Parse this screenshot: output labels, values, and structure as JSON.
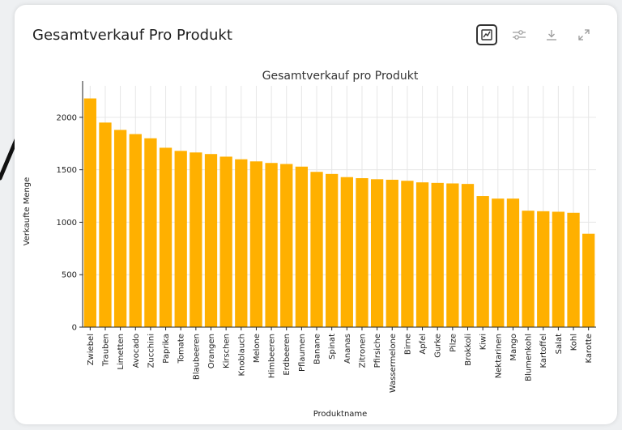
{
  "card": {
    "title": "Gesamtverkauf Pro Produkt"
  },
  "toolbar": {
    "icons": [
      "chart-view-icon",
      "filter-sliders-icon",
      "download-icon",
      "expand-icon"
    ]
  },
  "colors": {
    "bar": "#FFB000",
    "grid": "#e6e6e6",
    "axis": "#222222"
  },
  "chart_data": {
    "type": "bar",
    "title": "Gesamtverkauf pro Produkt",
    "xlabel": "Produktname",
    "ylabel": "Verkaufte Menge",
    "ylim": [
      0,
      2300
    ],
    "yticks": [
      0,
      500,
      1000,
      1500,
      2000
    ],
    "grid": true,
    "categories": [
      "Zwiebel",
      "Trauben",
      "Limetten",
      "Avocado",
      "Zucchini",
      "Paprika",
      "Tomate",
      "Blaubeeren",
      "Orangen",
      "Kirschen",
      "Knoblauch",
      "Melone",
      "Himbeeren",
      "Erdbeeren",
      "Pflaumen",
      "Banane",
      "Spinat",
      "Ananas",
      "Zitronen",
      "Pfirsiche",
      "Wassermelone",
      "Birne",
      "Apfel",
      "Gurke",
      "Pilze",
      "Brokkoli",
      "Kiwi",
      "Nektarinen",
      "Mango",
      "Blumenkohl",
      "Kartoffel",
      "Salat",
      "Kohl",
      "Karotte"
    ],
    "values": [
      2180,
      1950,
      1880,
      1840,
      1800,
      1710,
      1680,
      1665,
      1650,
      1625,
      1600,
      1580,
      1565,
      1555,
      1530,
      1480,
      1460,
      1430,
      1420,
      1410,
      1405,
      1395,
      1380,
      1375,
      1370,
      1365,
      1250,
      1225,
      1225,
      1110,
      1105,
      1100,
      1090,
      890
    ]
  }
}
